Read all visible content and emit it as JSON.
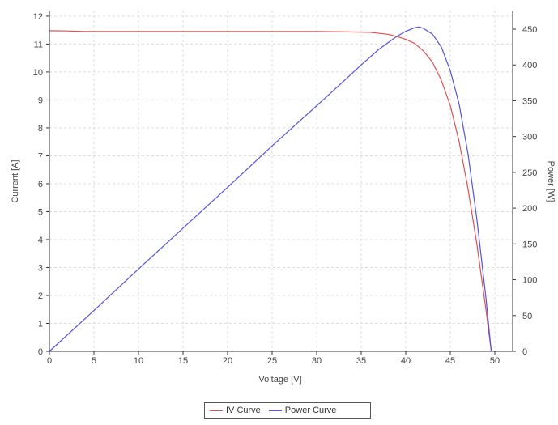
{
  "chart_data": {
    "type": "line",
    "title": "",
    "xlabel": "Voltage [V]",
    "ylabel_left": "Current [A]",
    "ylabel_right": "Power [W]",
    "xlim": [
      0,
      52
    ],
    "ylim_left": [
      0,
      12.2
    ],
    "ylim_right": [
      0,
      476
    ],
    "x_ticks": [
      0,
      5,
      10,
      15,
      20,
      25,
      30,
      35,
      40,
      45,
      50
    ],
    "y_left_ticks": [
      0,
      1,
      2,
      3,
      4,
      5,
      6,
      7,
      8,
      9,
      10,
      11,
      12
    ],
    "y_right_ticks": [
      0,
      50,
      100,
      150,
      200,
      250,
      300,
      350,
      400,
      450
    ],
    "grid": true,
    "legend_position": "bottom-center",
    "series": [
      {
        "name": "IV Curve",
        "axis": "left",
        "color": "#e05050",
        "x": [
          0,
          2,
          4,
          10,
          20,
          30,
          33,
          36,
          38,
          39,
          40,
          41,
          42,
          43,
          44,
          45,
          46,
          47,
          48,
          49,
          49.6
        ],
        "y": [
          11.48,
          11.47,
          11.45,
          11.45,
          11.45,
          11.45,
          11.44,
          11.42,
          11.35,
          11.27,
          11.17,
          11.02,
          10.75,
          10.35,
          9.7,
          8.8,
          7.5,
          5.8,
          3.8,
          1.5,
          0
        ]
      },
      {
        "name": "Power Curve",
        "axis": "right",
        "color": "#5555dd",
        "x": [
          0,
          5,
          10,
          15,
          20,
          25,
          30,
          33,
          35,
          37,
          39,
          40,
          41,
          41.5,
          42,
          43,
          44,
          45,
          46,
          47,
          48,
          49,
          49.6
        ],
        "y": [
          0,
          57,
          115,
          172,
          229,
          287,
          343,
          377,
          400,
          422,
          440,
          447,
          452,
          453,
          451,
          443,
          425,
          392,
          345,
          275,
          183,
          75,
          0
        ]
      }
    ]
  }
}
